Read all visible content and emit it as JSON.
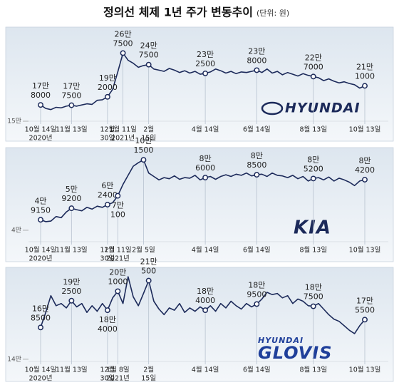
{
  "title": "정의선 체제 1년 주가 변동추이",
  "unit": "(단위: 원)",
  "chart_data": [
    {
      "type": "line",
      "color": "#1c2a5a",
      "ylim": [
        150000,
        300000
      ],
      "yticks": [
        {
          "value": 150000,
          "label": "15만"
        }
      ],
      "values": [
        178000,
        172000,
        170000,
        174000,
        173000,
        176000,
        177500,
        176000,
        178000,
        180000,
        179000,
        186000,
        187000,
        192000,
        205000,
        235000,
        267500,
        255000,
        250000,
        243000,
        246000,
        247500,
        240000,
        238000,
        236000,
        241000,
        238000,
        234000,
        237000,
        233000,
        236000,
        231000,
        232500,
        235000,
        240000,
        237000,
        233000,
        236000,
        232000,
        235000,
        234000,
        236000,
        238000,
        234000,
        240000,
        233000,
        236000,
        230000,
        234000,
        231000,
        228000,
        232000,
        229000,
        227000,
        225000,
        220000,
        223000,
        219000,
        216000,
        218000,
        215000,
        213000,
        207000,
        211000
      ],
      "annotations": [
        {
          "label": "17만 8000",
          "value": 178000
        },
        {
          "label": "17만 7500",
          "value": 177500
        },
        {
          "label": "19만 2000",
          "value": 192000
        },
        {
          "label": "26만 7500",
          "value": 267500
        },
        {
          "label": "24만 7500",
          "value": 247500
        },
        {
          "label": "23만 2500",
          "value": 232500
        },
        {
          "label": "23만 8000",
          "value": 238000
        },
        {
          "label": "22만 7000",
          "value": 227000
        },
        {
          "label": "21만 1000",
          "value": 211000
        }
      ],
      "xlabels": [
        [
          "10월 14일",
          "2020년"
        ],
        [
          "11월 13일"
        ],
        [
          "12월",
          "30일"
        ],
        [
          "1월 11일",
          "2021년"
        ],
        [
          "2월",
          "15일"
        ],
        [
          "4월 14일"
        ],
        [
          "6월 14일"
        ],
        [
          "8월 13일"
        ],
        [
          "10월 13일"
        ]
      ],
      "brand": [
        "HYUNDAI"
      ]
    },
    {
      "type": "line",
      "color": "#1c2a5a",
      "ylim": [
        30000,
        106000
      ],
      "yticks": [
        {
          "value": 40000,
          "label": "4만"
        }
      ],
      "values": [
        49150,
        47500,
        48000,
        52000,
        51000,
        56000,
        59200,
        58000,
        57000,
        60000,
        58500,
        61000,
        60000,
        62400,
        64000,
        70100,
        80000,
        88000,
        96000,
        99000,
        101500,
        90000,
        87000,
        84000,
        86000,
        85000,
        87500,
        84500,
        86000,
        85500,
        88000,
        84000,
        86000,
        87000,
        84500,
        87000,
        88500,
        87000,
        89000,
        88000,
        90000,
        87500,
        88500,
        89000,
        87000,
        90000,
        88000,
        87500,
        86000,
        88000,
        85000,
        87000,
        83000,
        85200,
        86000,
        84000,
        86500,
        83000,
        85500,
        84000,
        82000,
        79000,
        83000,
        84200
      ],
      "annotations": [
        {
          "label": "4만 9150",
          "value": 49150
        },
        {
          "label": "5만 9200",
          "value": 59200
        },
        {
          "label": "6만 2400",
          "value": 62400
        },
        {
          "label": "7만 100",
          "value": 70100
        },
        {
          "label": "10만 1500",
          "value": 101500
        },
        {
          "label": "8만 6000",
          "value": 86000
        },
        {
          "label": "8만 8500",
          "value": 88500
        },
        {
          "label": "8만 5200",
          "value": 85200
        },
        {
          "label": "8만 4200",
          "value": 84200
        }
      ],
      "xlabels": [
        [
          "10월 14일",
          "2020년"
        ],
        [
          "11월 13일"
        ],
        [
          "12월",
          "30일"
        ],
        [
          "1월 11일",
          "2021년"
        ],
        [
          "2월 5일"
        ],
        [
          "4월 14일"
        ],
        [
          "6월 14일"
        ],
        [
          "8월 13일"
        ],
        [
          "10월 13일"
        ]
      ],
      "brand": [
        "KIA"
      ]
    },
    {
      "type": "line",
      "color": "#1c2a5a",
      "ylim": [
        138000,
        216000
      ],
      "yticks": [
        {
          "value": 140000,
          "label": "14만"
        }
      ],
      "values": [
        168500,
        182000,
        197000,
        188000,
        190000,
        186000,
        192500,
        187000,
        190000,
        182000,
        188000,
        183000,
        190000,
        184000,
        195000,
        201000,
        190000,
        214000,
        196000,
        188000,
        199000,
        210500,
        192000,
        185000,
        180000,
        186000,
        184000,
        190000,
        182000,
        186000,
        183000,
        187000,
        184000,
        188000,
        183000,
        190000,
        186000,
        192000,
        188000,
        185000,
        190000,
        187000,
        189500,
        194000,
        200000,
        198000,
        199000,
        195000,
        197000,
        190000,
        194000,
        192000,
        188000,
        187500,
        190000,
        185000,
        180000,
        176000,
        174000,
        170000,
        166000,
        163000,
        170000,
        175500
      ],
      "annotations": [
        {
          "label": "16만 8500",
          "value": 168500
        },
        {
          "label": "19만 2500",
          "value": 192500
        },
        {
          "label": "18만 4000",
          "value": 184000
        },
        {
          "label": "20만 1000",
          "value": 201000
        },
        {
          "label": "21만 500",
          "value": 210500
        },
        {
          "label": "18만 4000",
          "value": 184000
        },
        {
          "label": "18만 9500",
          "value": 189500
        },
        {
          "label": "18만 7500",
          "value": 187500
        },
        {
          "label": "17만 5500",
          "value": 175500
        }
      ],
      "xlabels": [
        [
          "10월 14일",
          "2020년"
        ],
        [
          "11월 13일"
        ],
        [
          "12월",
          "30일"
        ],
        [
          "1월 8일",
          "2021년"
        ],
        [
          "2월",
          "15일"
        ],
        [
          "4월 14일"
        ],
        [
          "6월 14일"
        ],
        [
          "8월 13일"
        ],
        [
          "10월 13일"
        ]
      ],
      "brand": [
        "HYUNDAI",
        "GLOVIS"
      ]
    }
  ]
}
